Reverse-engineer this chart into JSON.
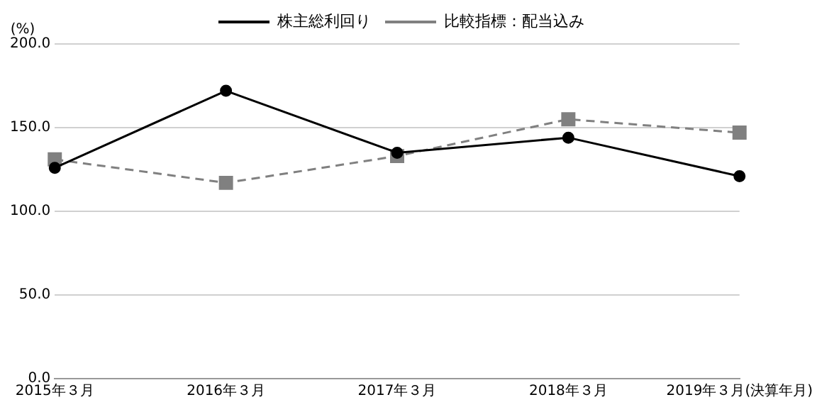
{
  "chart_data": {
    "type": "line",
    "ylabel": "(%)",
    "categories": [
      "2015年３月",
      "2016年３月",
      "2017年３月",
      "2018年３月",
      "2019年３月(決算年月)"
    ],
    "series": [
      {
        "name": "株主総利回り",
        "color": "#000000",
        "values": [
          126,
          172,
          135,
          144,
          121
        ],
        "marker": "circle",
        "line_style": "solid"
      },
      {
        "name": "比較指標：配当込み",
        "color": "#808080",
        "values": [
          131,
          117,
          133,
          155,
          147
        ],
        "marker": "square",
        "line_style": "dashed"
      }
    ],
    "ylim": [
      0,
      200
    ],
    "yticks": [
      {
        "value": 0,
        "label": "0.0"
      },
      {
        "value": 50,
        "label": "50.0"
      },
      {
        "value": 100,
        "label": "100.0"
      },
      {
        "value": 150,
        "label": "150.0"
      },
      {
        "value": 200,
        "label": "200.0"
      }
    ],
    "grid": "y",
    "legend": "top"
  }
}
